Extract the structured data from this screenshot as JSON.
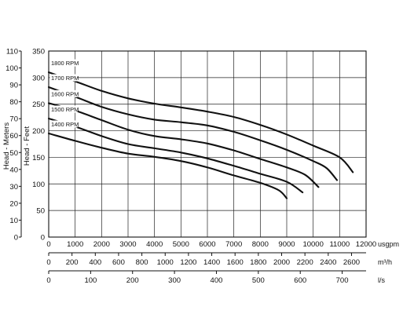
{
  "chart_data": {
    "type": "line",
    "title": "",
    "ylabel_left": "Head - Meters",
    "ylabel_right": "Head - Feet",
    "y_feet": {
      "ticks": [
        0,
        50,
        100,
        150,
        200,
        250,
        300,
        350
      ],
      "range": [
        0,
        350
      ]
    },
    "y_meters": {
      "ticks": [
        0,
        10,
        20,
        30,
        40,
        50,
        60,
        70,
        80,
        90,
        100,
        110
      ],
      "range": [
        0,
        110
      ]
    },
    "x_usgpm": {
      "unit": "usgpm",
      "ticks": [
        0,
        1000,
        2000,
        3000,
        4000,
        5000,
        6000,
        7000,
        8000,
        9000,
        10000,
        11000,
        12000
      ],
      "range": [
        0,
        12000
      ]
    },
    "x_m3h": {
      "unit": "m³/h",
      "ticks": [
        0,
        200,
        400,
        600,
        800,
        1000,
        1200,
        1400,
        1600,
        1800,
        2000,
        2200,
        2400,
        2600
      ]
    },
    "x_ls": {
      "unit": "l/s",
      "ticks": [
        0,
        100,
        200,
        300,
        400,
        500,
        600,
        700
      ]
    },
    "grid": true,
    "series": [
      {
        "name": "1800 RPM",
        "points": [
          [
            0,
            310
          ],
          [
            1000,
            293
          ],
          [
            2000,
            275
          ],
          [
            3000,
            261
          ],
          [
            4000,
            251
          ],
          [
            5000,
            244
          ],
          [
            6000,
            236
          ],
          [
            7000,
            226
          ],
          [
            8000,
            211
          ],
          [
            9000,
            193
          ],
          [
            10000,
            172
          ],
          [
            11000,
            150
          ],
          [
            11500,
            122
          ]
        ]
      },
      {
        "name": "1700 RPM",
        "points": [
          [
            0,
            282
          ],
          [
            1000,
            264
          ],
          [
            2000,
            245
          ],
          [
            3000,
            231
          ],
          [
            4000,
            221
          ],
          [
            5000,
            216
          ],
          [
            6000,
            210
          ],
          [
            7000,
            198
          ],
          [
            8000,
            182
          ],
          [
            9000,
            164
          ],
          [
            10000,
            143
          ],
          [
            10500,
            130
          ],
          [
            10900,
            107
          ]
        ]
      },
      {
        "name": "1600 RPM",
        "points": [
          [
            0,
            252
          ],
          [
            1000,
            238
          ],
          [
            2000,
            220
          ],
          [
            3000,
            202
          ],
          [
            4000,
            190
          ],
          [
            5000,
            184
          ],
          [
            6000,
            176
          ],
          [
            7000,
            163
          ],
          [
            8000,
            147
          ],
          [
            9000,
            131
          ],
          [
            9700,
            117
          ],
          [
            10200,
            94
          ]
        ]
      },
      {
        "name": "1500 RPM",
        "points": [
          [
            0,
            223
          ],
          [
            1000,
            208
          ],
          [
            2000,
            190
          ],
          [
            3000,
            175
          ],
          [
            4000,
            167
          ],
          [
            5000,
            159
          ],
          [
            6000,
            148
          ],
          [
            7000,
            134
          ],
          [
            8000,
            119
          ],
          [
            9000,
            104
          ],
          [
            9600,
            84
          ]
        ]
      },
      {
        "name": "1400 RPM",
        "points": [
          [
            0,
            195
          ],
          [
            1000,
            181
          ],
          [
            2000,
            168
          ],
          [
            3000,
            157
          ],
          [
            4000,
            151
          ],
          [
            5000,
            143
          ],
          [
            6000,
            131
          ],
          [
            7000,
            116
          ],
          [
            8000,
            102
          ],
          [
            8700,
            88
          ],
          [
            9000,
            73
          ]
        ]
      }
    ]
  }
}
